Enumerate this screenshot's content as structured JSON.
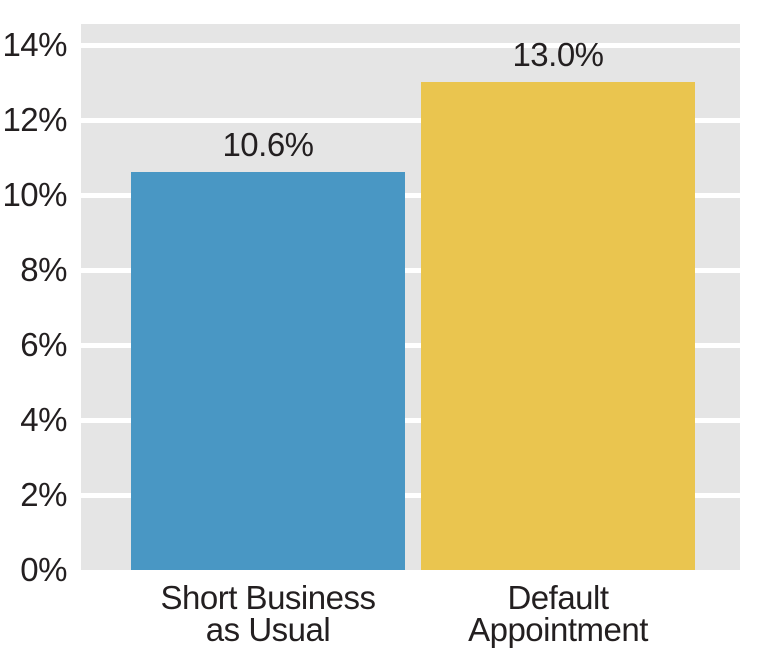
{
  "chart_data": {
    "type": "bar",
    "title": "",
    "xlabel": "",
    "ylabel": "",
    "categories": [
      {
        "lines": [
          "Short Business",
          "as Usual"
        ]
      },
      {
        "lines": [
          "Default",
          "Appointment"
        ]
      }
    ],
    "values": [
      10.6,
      13.0
    ],
    "data_labels": [
      "10.6%",
      "13.0%"
    ],
    "bar_colors": [
      "#4997c4",
      "#eac54f"
    ],
    "ytick_values": [
      0,
      2,
      4,
      6,
      8,
      10,
      12,
      14
    ],
    "ytick_labels": [
      "0%",
      "2%",
      "4%",
      "6%",
      "8%",
      "10%",
      "12%",
      "14%"
    ],
    "ylim": [
      0,
      14.56
    ],
    "grid": true,
    "legend": null,
    "colors": {
      "plot_background": "#e5e5e5",
      "gridline": "#ffffff",
      "text": "#231f20",
      "page_background": "#ffffff"
    }
  }
}
